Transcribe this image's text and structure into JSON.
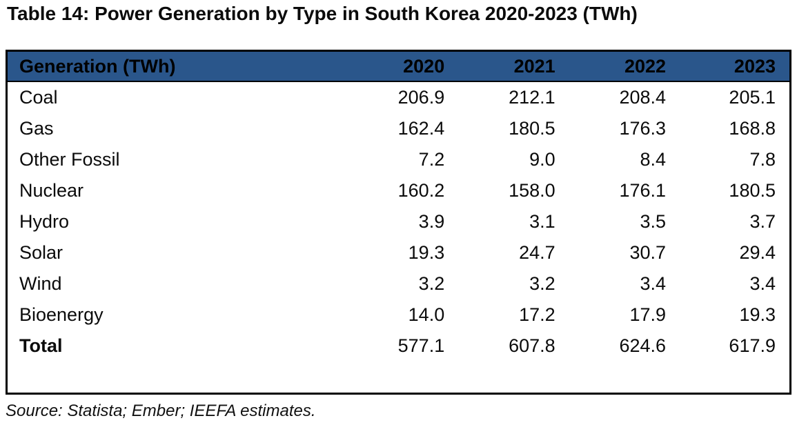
{
  "page": {
    "title": "Table 14: Power Generation by Type in South Korea 2020-2023 (TWh)",
    "source_note": "Source: Statista; Ember; IEEFA estimates."
  },
  "colors": {
    "header_bg": "#2A568B",
    "header_text": "#000000",
    "body_text": "#0b0b0b",
    "border": "#000000",
    "background": "#ffffff"
  },
  "chart_data": {
    "type": "table",
    "title": "Power Generation by Type in South Korea 2020-2023 (TWh)",
    "columns": [
      "Generation (TWh)",
      "2020",
      "2021",
      "2022",
      "2023"
    ],
    "rows": [
      {
        "label": "Coal",
        "values": [
          206.9,
          212.1,
          208.4,
          205.1
        ],
        "bold_label": false
      },
      {
        "label": "Gas",
        "values": [
          162.4,
          180.5,
          176.3,
          168.8
        ],
        "bold_label": false
      },
      {
        "label": "Other Fossil",
        "values": [
          7.2,
          9.0,
          8.4,
          7.8
        ],
        "bold_label": false
      },
      {
        "label": "Nuclear",
        "values": [
          160.2,
          158.0,
          176.1,
          180.5
        ],
        "bold_label": false
      },
      {
        "label": "Hydro",
        "values": [
          3.9,
          3.1,
          3.5,
          3.7
        ],
        "bold_label": false
      },
      {
        "label": "Solar",
        "values": [
          19.3,
          24.7,
          30.7,
          29.4
        ],
        "bold_label": false
      },
      {
        "label": "Wind",
        "values": [
          3.2,
          3.2,
          3.4,
          3.4
        ],
        "bold_label": false
      },
      {
        "label": "Bioenergy",
        "values": [
          14.0,
          17.2,
          17.9,
          19.3
        ],
        "bold_label": false
      },
      {
        "label": "Total",
        "values": [
          577.1,
          607.8,
          624.6,
          617.9
        ],
        "bold_label": true
      }
    ],
    "value_format": "one_decimal",
    "notes": "First column left-aligned; year columns right-aligned; header row dark blue with black bold text; no internal gridlines; black outer border"
  }
}
